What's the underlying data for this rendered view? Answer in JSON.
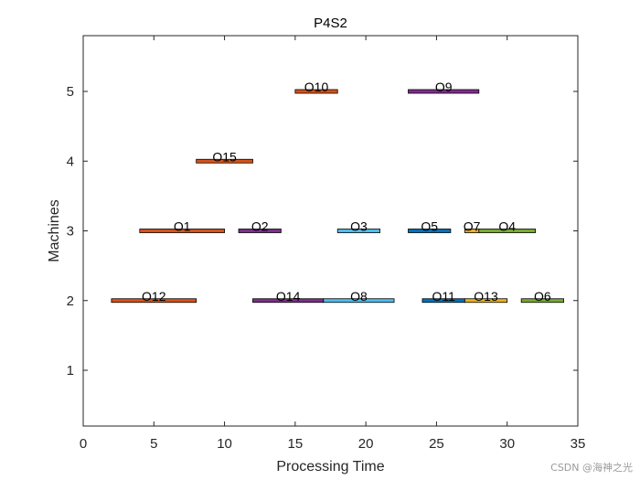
{
  "chart_data": {
    "type": "gantt",
    "title": "P4S2",
    "xlabel": "Processing Time",
    "ylabel": "Machines",
    "xlim": [
      0,
      35
    ],
    "ylim": [
      0.2,
      5.8
    ],
    "xticks": [
      0,
      5,
      10,
      15,
      20,
      25,
      30,
      35
    ],
    "yticks": [
      1,
      2,
      3,
      4,
      5
    ],
    "grid": false,
    "tasks": [
      {
        "label": "O12",
        "machine": 2,
        "start": 2,
        "end": 8,
        "color": "#D95319"
      },
      {
        "label": "O14",
        "machine": 2,
        "start": 12,
        "end": 17,
        "color": "#7E2F8E"
      },
      {
        "label": "O8",
        "machine": 2,
        "start": 17,
        "end": 22,
        "color": "#4DBEEE"
      },
      {
        "label": "O11",
        "machine": 2,
        "start": 24,
        "end": 27,
        "color": "#0072BD"
      },
      {
        "label": "O13",
        "machine": 2,
        "start": 27,
        "end": 30,
        "color": "#EDB120"
      },
      {
        "label": "O6",
        "machine": 2,
        "start": 31,
        "end": 34,
        "color": "#77AC30"
      },
      {
        "label": "O1",
        "machine": 3,
        "start": 4,
        "end": 10,
        "color": "#D95319"
      },
      {
        "label": "O2",
        "machine": 3,
        "start": 11,
        "end": 14,
        "color": "#7E2F8E"
      },
      {
        "label": "O3",
        "machine": 3,
        "start": 18,
        "end": 21,
        "color": "#4DBEEE"
      },
      {
        "label": "O5",
        "machine": 3,
        "start": 23,
        "end": 26,
        "color": "#0072BD"
      },
      {
        "label": "O7",
        "machine": 3,
        "start": 27,
        "end": 28,
        "color": "#EDB120"
      },
      {
        "label": "O4",
        "machine": 3,
        "start": 28,
        "end": 32,
        "color": "#77AC30"
      },
      {
        "label": "O15",
        "machine": 4,
        "start": 8,
        "end": 12,
        "color": "#D95319"
      },
      {
        "label": "O10",
        "machine": 5,
        "start": 15,
        "end": 18,
        "color": "#D95319"
      },
      {
        "label": "O9",
        "machine": 5,
        "start": 23,
        "end": 28,
        "color": "#7E2F8E"
      }
    ]
  },
  "watermark": "CSDN @海神之光"
}
